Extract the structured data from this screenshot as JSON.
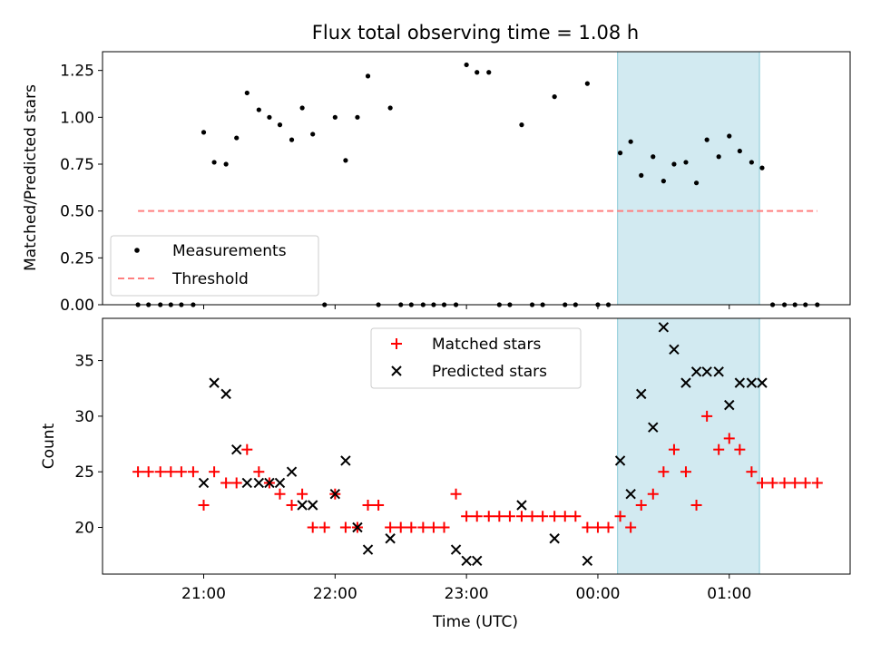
{
  "chart_data": [
    {
      "type": "scatter",
      "title": "Flux total observing time = 1.08 h",
      "xlabel": "",
      "ylabel": "Matched/Predicted stars",
      "ylim": [
        0.0,
        1.35
      ],
      "yticks": [
        0.0,
        0.25,
        0.5,
        0.75,
        1.0,
        1.25
      ],
      "ytick_labels": [
        "0.00",
        "0.25",
        "0.50",
        "0.75",
        "1.00",
        "1.25"
      ],
      "xlim": [
        20.23,
        1.92
      ],
      "xticks": [
        21.0,
        22.0,
        23.0,
        0.0,
        1.0
      ],
      "grid": false,
      "legend": {
        "placement": "lower-left"
      },
      "highlight_span": {
        "x": [
          0.15,
          1.23
        ],
        "color": "#add8e6"
      },
      "series": [
        {
          "name": "Measurements",
          "marker": "dot",
          "color": "#000000",
          "x": [
            20.5,
            20.58,
            20.67,
            20.75,
            20.83,
            20.92,
            21.0,
            21.08,
            21.17,
            21.25,
            21.33,
            21.42,
            21.5,
            21.58,
            21.67,
            21.75,
            21.83,
            21.92,
            22.0,
            22.08,
            22.17,
            22.25,
            22.33,
            22.42,
            22.5,
            22.58,
            22.67,
            22.75,
            22.83,
            22.92,
            23.0,
            23.08,
            23.17,
            23.25,
            23.33,
            23.42,
            23.5,
            23.58,
            23.67,
            23.75,
            23.83,
            23.92,
            0.0,
            0.08,
            0.17,
            0.25,
            0.33,
            0.42,
            0.5,
            0.58,
            0.67,
            0.75,
            0.83,
            0.92,
            1.0,
            1.08,
            1.17,
            1.25,
            1.33,
            1.42,
            1.5,
            1.58,
            1.67
          ],
          "y": [
            0.0,
            0.0,
            0.0,
            0.0,
            0.0,
            0.0,
            0.92,
            0.76,
            0.75,
            0.89,
            1.13,
            1.04,
            1.0,
            0.96,
            0.88,
            1.05,
            0.91,
            0.0,
            1.0,
            0.77,
            1.0,
            1.22,
            0.0,
            1.05,
            0.0,
            0.0,
            0.0,
            0.0,
            0.0,
            0.0,
            1.28,
            1.24,
            1.24,
            0.0,
            0.0,
            0.96,
            0.0,
            0.0,
            1.11,
            0.0,
            0.0,
            1.18,
            0.0,
            0.0,
            0.81,
            0.87,
            0.69,
            0.79,
            0.66,
            0.75,
            0.76,
            0.65,
            0.88,
            0.79,
            0.9,
            0.82,
            0.76,
            0.73,
            0.0,
            0.0,
            0.0,
            0.0,
            0.0
          ]
        },
        {
          "name": "Threshold",
          "marker": "dashed-line",
          "color": "#ff7f7f",
          "x": [
            20.5,
            1.67
          ],
          "y": [
            0.5,
            0.5
          ]
        }
      ]
    },
    {
      "type": "scatter",
      "title": "",
      "xlabel": "Time (UTC)",
      "ylabel": "Count",
      "ylim": [
        15.8,
        38.8
      ],
      "yticks": [
        20,
        25,
        30,
        35
      ],
      "xlim": [
        20.23,
        1.92
      ],
      "xticks": [
        21.0,
        22.0,
        23.0,
        0.0,
        1.0
      ],
      "xtick_labels": [
        "21:00",
        "22:00",
        "23:00",
        "00:00",
        "01:00"
      ],
      "grid": false,
      "legend": {
        "placement": "top-center"
      },
      "highlight_span": {
        "x": [
          0.15,
          1.23
        ],
        "color": "#add8e6"
      },
      "series": [
        {
          "name": "Matched stars",
          "marker": "plus",
          "color": "#ff0000",
          "x": [
            20.5,
            20.58,
            20.67,
            20.75,
            20.83,
            20.92,
            21.0,
            21.08,
            21.17,
            21.25,
            21.33,
            21.42,
            21.5,
            21.58,
            21.67,
            21.75,
            21.83,
            21.92,
            22.0,
            22.08,
            22.17,
            22.25,
            22.33,
            22.42,
            22.5,
            22.58,
            22.67,
            22.75,
            22.83,
            22.92,
            23.0,
            23.08,
            23.17,
            23.25,
            23.33,
            23.42,
            23.5,
            23.58,
            23.67,
            23.75,
            23.83,
            23.92,
            0.0,
            0.08,
            0.17,
            0.25,
            0.33,
            0.42,
            0.5,
            0.58,
            0.67,
            0.75,
            0.83,
            0.92,
            1.0,
            1.08,
            1.17,
            1.25,
            1.33,
            1.42,
            1.5,
            1.58,
            1.67
          ],
          "y": [
            25,
            25,
            25,
            25,
            25,
            25,
            22,
            25,
            24,
            24,
            27,
            25,
            24,
            23,
            22,
            23,
            20,
            20,
            23,
            20,
            20,
            22,
            22,
            20,
            20,
            20,
            20,
            20,
            20,
            23,
            21,
            21,
            21,
            21,
            21,
            21,
            21,
            21,
            21,
            21,
            21,
            20,
            20,
            20,
            21,
            20,
            22,
            23,
            25,
            27,
            25,
            22,
            30,
            27,
            28,
            27,
            25,
            24,
            24,
            24,
            24,
            24,
            24
          ]
        },
        {
          "name": "Predicted stars",
          "marker": "x",
          "color": "#000000",
          "x": [
            21.0,
            21.08,
            21.17,
            21.25,
            21.33,
            21.42,
            21.5,
            21.58,
            21.67,
            21.75,
            21.83,
            22.0,
            22.08,
            22.17,
            22.25,
            22.42,
            22.92,
            23.0,
            23.08,
            23.42,
            23.67,
            23.92,
            0.17,
            0.25,
            0.33,
            0.42,
            0.5,
            0.58,
            0.67,
            0.75,
            0.83,
            0.92,
            1.0,
            1.08,
            1.17,
            1.25
          ],
          "y": [
            24,
            33,
            32,
            27,
            24,
            24,
            24,
            24,
            25,
            22,
            22,
            23,
            26,
            20,
            18,
            19,
            18,
            17,
            17,
            22,
            19,
            17,
            26,
            23,
            32,
            29,
            38,
            36,
            33,
            34,
            34,
            34,
            31,
            33,
            33,
            33
          ]
        }
      ]
    }
  ]
}
